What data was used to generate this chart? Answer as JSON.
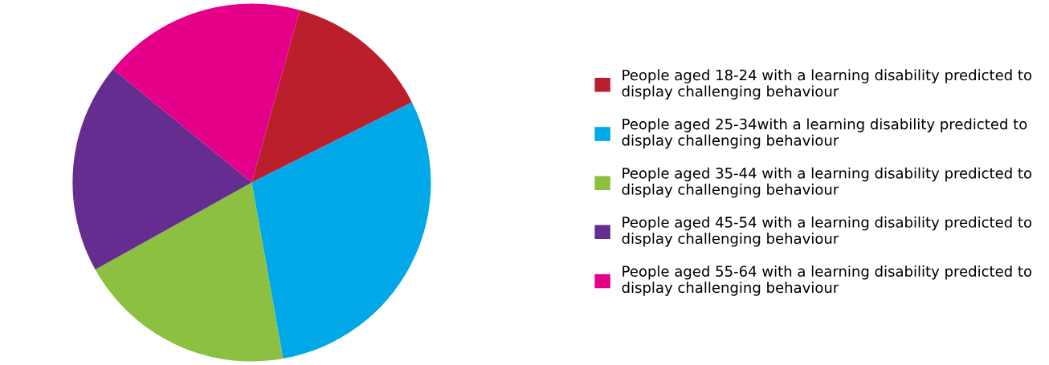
{
  "chart_data": {
    "type": "pie",
    "categories": [
      "People aged 18-24 with a learning disability predicted to\ndisplay challenging behaviour",
      "People aged 25-34with a learning disability predicted to\ndisplay challenging behaviour",
      "People aged 35-44 with a learning disability predicted to\ndisplay challenging behaviour",
      "People aged 45-54 with a learning disability predicted to\ndisplay challenging behaviour",
      "People aged 55-64 with a learning disability predicted to\ndisplay challenging behaviour"
    ],
    "values": [
      13.3,
      29.6,
      19.7,
      19.0,
      18.4
    ],
    "colors": [
      "#bc1f2c",
      "#00a8e8",
      "#8bc040",
      "#642d8f",
      "#e5008a"
    ],
    "legend": "right"
  }
}
